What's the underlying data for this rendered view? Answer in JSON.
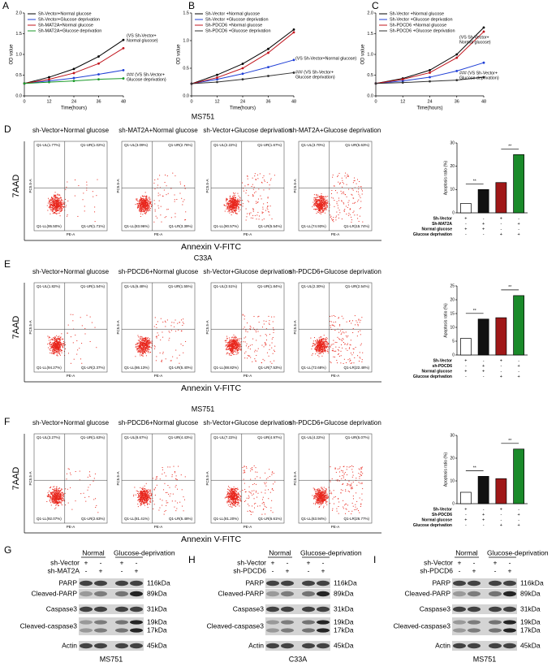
{
  "panel_letters": [
    "A",
    "B",
    "C",
    "D",
    "E",
    "F",
    "G",
    "H",
    "I"
  ],
  "chart_data": [
    {
      "type": "line",
      "x": [
        0,
        12,
        24,
        36,
        48
      ],
      "xlim": [
        0,
        48
      ],
      "xticks": [
        0,
        12,
        24,
        36,
        48
      ],
      "ylim": [
        0,
        2
      ],
      "yticks": [
        {
          "value": 0,
          "label": "0.0"
        },
        {
          "value": 0.5,
          "label": "0.5"
        },
        {
          "value": 1,
          "label": "1.0"
        },
        {
          "value": 1.5,
          "label": "1.5"
        },
        {
          "value": 2,
          "label": "2.0"
        }
      ],
      "xlabel": "Time(hours)",
      "ylabel": "OD value",
      "series": [
        {
          "name": "Sh-Vector+Normal glucose",
          "color": "#000000",
          "values": [
            0.3,
            0.45,
            0.65,
            0.95,
            1.35
          ]
        },
        {
          "name": "Sh-Vector+Glucose deprivation",
          "color": "#1f3fd6",
          "values": [
            0.3,
            0.36,
            0.43,
            0.52,
            0.62
          ]
        },
        {
          "name": "Sh-MAT2A+Normal glucose",
          "color": "#c0141c",
          "values": [
            0.3,
            0.4,
            0.55,
            0.78,
            1.15
          ]
        },
        {
          "name": "Sh-MAT2A+Glucose deprivation",
          "color": "#1a9a2a",
          "values": [
            0.3,
            0.33,
            0.36,
            0.4,
            0.42
          ]
        }
      ],
      "annotations": [
        [
          "(VS Sh-Vector+",
          "Normal glucose)"
        ],
        [
          "### (VS Sh-Vector+",
          "Glucose deprivation)"
        ]
      ]
    },
    {
      "type": "line",
      "x": [
        0,
        12,
        24,
        36,
        48
      ],
      "xlim": [
        0,
        48
      ],
      "xticks": [
        0,
        12,
        24,
        36,
        48
      ],
      "ylim": [
        0,
        1.5
      ],
      "yticks": [
        {
          "value": 0,
          "label": "0.0"
        },
        {
          "value": 0.5,
          "label": "0.5"
        },
        {
          "value": 1,
          "label": "1.0"
        },
        {
          "value": 1.5,
          "label": "1.5"
        }
      ],
      "xlabel": "Time(hours)",
      "ylabel": "OD value",
      "series": [
        {
          "name": "Sh-Vector +Normal glucose",
          "color": "#000000",
          "values": [
            0.22,
            0.38,
            0.58,
            0.85,
            1.2
          ]
        },
        {
          "name": "Sh-Vector +Glucose deprivation",
          "color": "#1f3fd6",
          "values": [
            0.22,
            0.3,
            0.4,
            0.52,
            0.65
          ]
        },
        {
          "name": "Sh-PDCD6 +Normal glucose",
          "color": "#c0141c",
          "values": [
            0.22,
            0.33,
            0.5,
            0.78,
            1.15
          ]
        },
        {
          "name": "Sh-PDCD6 +Glucose deprivation",
          "color": "#333333",
          "values": [
            0.22,
            0.25,
            0.3,
            0.36,
            0.42
          ]
        }
      ],
      "annotations": [
        [
          "(VS Sh-Vector+Normal glucose)"
        ],
        [
          "### (VS Sh-Vector+",
          "Glucose deprivation)"
        ]
      ]
    },
    {
      "type": "line",
      "x": [
        0,
        12,
        24,
        36,
        48
      ],
      "xlim": [
        0,
        48
      ],
      "xticks": [
        0,
        12,
        24,
        36,
        48
      ],
      "ylim": [
        0,
        2
      ],
      "yticks": [
        {
          "value": 0,
          "label": "0.0"
        },
        {
          "value": 0.5,
          "label": "0.5"
        },
        {
          "value": 1,
          "label": "1.0"
        },
        {
          "value": 1.5,
          "label": "1.5"
        },
        {
          "value": 2,
          "label": "2.0"
        }
      ],
      "xlabel": "Time(hours)",
      "ylabel": "OD value",
      "series": [
        {
          "name": "Sh-Vector +Normal glucose",
          "color": "#000000",
          "values": [
            0.3,
            0.42,
            0.62,
            1.0,
            1.65
          ]
        },
        {
          "name": "Sh-Vector +Glucose deprivation",
          "color": "#1f3fd6",
          "values": [
            0.3,
            0.36,
            0.45,
            0.6,
            0.8
          ]
        },
        {
          "name": "Sh-PDCD6 +Normal glucose",
          "color": "#c0141c",
          "values": [
            0.3,
            0.4,
            0.56,
            0.92,
            1.55
          ]
        },
        {
          "name": "Sh-PDCD6 +Glucose deprivation",
          "color": "#333333",
          "values": [
            0.3,
            0.32,
            0.35,
            0.38,
            0.45
          ]
        }
      ],
      "annotations": [
        [
          "(VS Sh-Vector+",
          "Normal glucose)"
        ],
        [
          "### (VS Sh-Vector+",
          "Glucose deprivation)"
        ]
      ]
    },
    {
      "type": "bar",
      "ylabel": "Apoptosis ratio (%)",
      "ylim": [
        0,
        30
      ],
      "yticks": [
        0,
        10,
        20,
        30
      ],
      "values": [
        4,
        10,
        13,
        25
      ],
      "colors": [
        "#ffffff",
        "#111111",
        "#a01818",
        "#1a8a2a"
      ],
      "significance": [
        "**",
        "**"
      ],
      "conditions": [
        {
          "label": "Sh-Vector",
          "signs": [
            "+",
            "-",
            "+",
            "-"
          ]
        },
        {
          "label": "Sh-MAT2A",
          "signs": [
            "-",
            "+",
            "-",
            "+"
          ]
        },
        {
          "label": "Normal glucose",
          "signs": [
            "+",
            "+",
            "-",
            "-"
          ]
        },
        {
          "label": "Glucose deprivation",
          "signs": [
            "-",
            "-",
            "+",
            "+"
          ]
        }
      ]
    },
    {
      "type": "bar",
      "ylabel": "Apoptosis ratio (%)",
      "ylim": [
        0,
        25
      ],
      "yticks": [
        0,
        5,
        10,
        15,
        20,
        25
      ],
      "values": [
        6,
        13,
        13.5,
        21.5
      ],
      "colors": [
        "#ffffff",
        "#111111",
        "#a01818",
        "#1a8a2a"
      ],
      "significance": [
        "**",
        "**"
      ],
      "conditions": [
        {
          "label": "Sh-Vector",
          "signs": [
            "+",
            "-",
            "+",
            "-"
          ]
        },
        {
          "label": "sh-PDCD6",
          "signs": [
            "-",
            "+",
            "-",
            "+"
          ]
        },
        {
          "label": "Normal glucose",
          "signs": [
            "+",
            "+",
            "-",
            "-"
          ]
        },
        {
          "label": "Glucose deprivation",
          "signs": [
            "-",
            "-",
            "+",
            "+"
          ]
        }
      ]
    },
    {
      "type": "bar",
      "ylabel": "Apoptosis ratio (%)",
      "ylim": [
        0,
        30
      ],
      "yticks": [
        0,
        10,
        20,
        30
      ],
      "values": [
        5,
        12,
        11,
        24
      ],
      "colors": [
        "#ffffff",
        "#111111",
        "#a01818",
        "#1a8a2a"
      ],
      "significance": [
        "**",
        "**"
      ],
      "conditions": [
        {
          "label": "Sh-Vector",
          "signs": [
            "+",
            "-",
            "+",
            "-"
          ]
        },
        {
          "label": "Sh-PDCD6",
          "signs": [
            "-",
            "+",
            "-",
            "+"
          ]
        },
        {
          "label": "Normal glucose",
          "signs": [
            "+",
            "+",
            "-",
            "-"
          ]
        },
        {
          "label": "Glucose deprivation",
          "signs": [
            "-",
            "-",
            "+",
            "+"
          ]
        }
      ]
    }
  ],
  "flow_axes": {
    "y": "PC5.5-A",
    "x": "PE-A",
    "big_y": "7AAD",
    "big_x": "Annexin V-FITC"
  },
  "flow": [
    {
      "header": "MS751",
      "titles": [
        "sh-Vector+Normal glucose",
        "sh-MAT2A+Normal glucose",
        "sh-Vector+Glucose deprivation",
        "sh-MAT2A+Glucose deprivation"
      ],
      "quadrants": [
        [
          "Q1-UL(1.77%)",
          "Q1-UR(1.02%)",
          "Q1-LL(95.50%)",
          "Q1-LR(1.71%)"
        ],
        [
          "Q1-UL(3.09%)",
          "Q1-UR(2.76%)",
          "Q1-LL(83.96%)",
          "Q1-LR(3.39%)"
        ],
        [
          "Q1-UL(2.22%)",
          "Q1-UR(1.67%)",
          "Q1-LL(90.57%)",
          "Q1-LR(5.54%)"
        ],
        [
          "Q1-UL(3.70%)",
          "Q1-UR(5.63%)",
          "Q1-LL(74.93%)",
          "Q1-LR(15.74%)"
        ]
      ]
    },
    {
      "header": "C33A",
      "titles": [
        "sh-Vector+Normal glucose",
        "sh-PDCD6+Normal glucose",
        "sh-Vector+Glucose deprivation",
        "sh-PDCD6+Glucose deprivation"
      ],
      "quadrants": [
        [
          "Q1-UL(1.82%)",
          "Q1-UR(1.54%)",
          "Q1-LL(94.27%)",
          "Q1-LR(2.37%)"
        ],
        [
          "Q1-UL(6.48%)",
          "Q1-UR(1.55%)",
          "Q1-LL(86.13%)",
          "Q1-LR(5.40%)"
        ],
        [
          "Q1-UL(2.51%)",
          "Q1-UR(1.84%)",
          "Q1-LL(88.82%)",
          "Q1-LR(7.53%)"
        ],
        [
          "Q1-UL(2.30%)",
          "Q1-UR(2.54%)",
          "Q1-LL(72.68%)",
          "Q1-LR(22.48%)"
        ]
      ]
    },
    {
      "header": "MS751",
      "titles": [
        "sh-Vector+Normal glucose",
        "sh-PDCD6+Normal glucose",
        "sh-Vector+Glucose deprivation",
        "sh-PDCD6+Glucose deprivation"
      ],
      "quadrants": [
        [
          "Q1-UL(3.27%)",
          "Q1-UR(1.63%)",
          "Q1-LL(92.07%)",
          "Q1-LR(2.63%)"
        ],
        [
          "Q1-UL(8.67%)",
          "Q1-UR(4.43%)",
          "Q1-LL(81.41%)",
          "Q1-LR(5.48%)"
        ],
        [
          "Q1-UL(7.22%)",
          "Q1-UR(4.97%)",
          "Q1-LL(81.20%)",
          "Q1-LR(6.61%)"
        ],
        [
          "Q1-UL(4.22%)",
          "Q1-UR(5.07%)",
          "Q1-LL(63.94%)",
          "Q1-LR(26.77%)"
        ]
      ]
    }
  ],
  "blots": [
    {
      "header": [
        "Normal",
        "Glucose-deprivation"
      ],
      "conditions": [
        {
          "label": "sh-Vector",
          "signs": [
            "+",
            "-",
            "+",
            "-"
          ]
        },
        {
          "label": "sh-MAT2A",
          "signs": [
            "-",
            "+",
            "-",
            "+"
          ]
        }
      ],
      "proteins": [
        {
          "label": "PARP",
          "sizes": [
            "116kDa"
          ]
        },
        {
          "label": "Cleaved-PARP",
          "sizes": [
            "89kDa"
          ]
        },
        {
          "label": "Caspase3",
          "sizes": [
            "31kDa"
          ]
        },
        {
          "label": "Cleaved-caspase3",
          "sizes": [
            "19kDa",
            "17kDa"
          ]
        },
        {
          "label": "Actin",
          "sizes": [
            "45kDa"
          ]
        }
      ],
      "cell_line": "MS751"
    },
    {
      "header": [
        "Normal",
        "Glucose-deprivation"
      ],
      "conditions": [
        {
          "label": "sh-Vector",
          "signs": [
            "+",
            "-",
            "+",
            "-"
          ]
        },
        {
          "label": "sh-PDCD6",
          "signs": [
            "-",
            "+",
            "-",
            "+"
          ]
        }
      ],
      "proteins": [
        {
          "label": "PARP",
          "sizes": [
            "116kDa"
          ]
        },
        {
          "label": "Cleaved-PARP",
          "sizes": [
            "89kDa"
          ]
        },
        {
          "label": "Caspase3",
          "sizes": [
            "31kDa"
          ]
        },
        {
          "label": "Cleaved-caspase3",
          "sizes": [
            "19kDa",
            "17kDa"
          ]
        },
        {
          "label": "Actin",
          "sizes": [
            "45kDa"
          ]
        }
      ],
      "cell_line": "C33A"
    },
    {
      "header": [
        "Normal",
        "Glucose-deprivation"
      ],
      "conditions": [
        {
          "label": "sh-Vector",
          "signs": [
            "+",
            "-",
            "+",
            "-"
          ]
        },
        {
          "label": "sh-PDCD6",
          "signs": [
            "-",
            "+",
            "-",
            "+"
          ]
        }
      ],
      "proteins": [
        {
          "label": "PARP",
          "sizes": [
            "116kDa"
          ]
        },
        {
          "label": "Cleaved-PARP",
          "sizes": [
            "89kDa"
          ]
        },
        {
          "label": "Caspase3",
          "sizes": [
            "31kDa"
          ]
        },
        {
          "label": "Cleaved-caspase3",
          "sizes": [
            "19kDa",
            "17kDa"
          ]
        },
        {
          "label": "Actin",
          "sizes": [
            "45kDa"
          ]
        }
      ],
      "cell_line": "MS751"
    }
  ]
}
